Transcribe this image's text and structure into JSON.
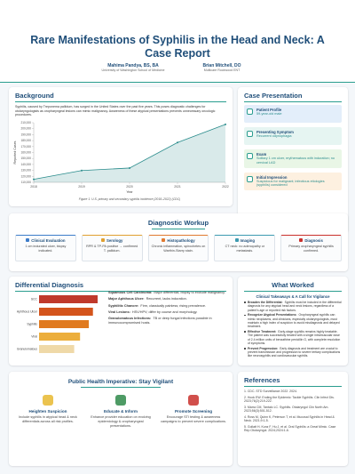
{
  "header": {
    "title": "Rare Manifestations of Syphilis in the Head and Neck: A Case Report",
    "authors": [
      {
        "name": "Mahima Pandya, BS, BA",
        "affiliation": "University of Washington School of Medicine"
      },
      {
        "name": "Brian Mitchell, DO",
        "affiliation": "Multicare Rockwood ENT"
      }
    ]
  },
  "background": {
    "title": "Background",
    "text": "Syphilis, caused by Treponema pallidum, has surged in the United States over the past five years. This poses diagnostic challenges for otolaryngologists as oropharyngeal lesions can mimic malignancy. Awareness of these atypical presentations prevents unnecessary oncologic procedures.",
    "chart": {
      "type": "line",
      "x_label": "Year",
      "y_label": "Reported Cases",
      "caption": "Figure 1. U.S. primary and secondary syphilis incidence (2018–2022) (CDC)",
      "x": [
        2018,
        2019,
        2020,
        2021,
        2022
      ],
      "series": [
        {
          "color": "#2a8c8c",
          "values": [
            115045,
            129813,
            133945,
            176713,
            207255
          ]
        }
      ],
      "xlim": [
        2018,
        2022
      ],
      "xticks": [
        2018,
        2019,
        2020,
        2021,
        2022
      ],
      "ylim": [
        110000,
        210000
      ],
      "yticks": [
        {
          "value": 110000,
          "label": "110,000"
        },
        {
          "value": 120000,
          "label": "120,000"
        },
        {
          "value": 130000,
          "label": "130,000"
        },
        {
          "value": 140000,
          "label": "140,000"
        },
        {
          "value": 150000,
          "label": "150,000"
        },
        {
          "value": 160000,
          "label": "160,000"
        },
        {
          "value": 170000,
          "label": "170,000"
        },
        {
          "value": 180000,
          "label": "180,000"
        },
        {
          "value": 190000,
          "label": "190,000"
        },
        {
          "value": 200000,
          "label": "200,000"
        },
        {
          "value": 210000,
          "label": "210,000"
        }
      ],
      "grid": false
    }
  },
  "case": {
    "title": "Case Presentation",
    "items": [
      {
        "label": "Patient Profile",
        "text": "59-year-old male",
        "color": "#e3eefa"
      },
      {
        "label": "Presenting Symptom",
        "text": "Recurrent odynophagia",
        "color": "#e6f5f2"
      },
      {
        "label": "Exam",
        "text": "Solitary 1 cm ulcer, erythematous with induration; no cervical LAD",
        "color": "#e9f6e6"
      },
      {
        "label": "Initial Impression",
        "text": "Suspicious for malignant; infectious etiologies (syphilis) considered",
        "color": "#fdf0e0"
      }
    ]
  },
  "workup": {
    "title": "Diagnostic Workup",
    "cards": [
      {
        "label": "Clinical Evaluation",
        "text": "1 cm indurated ulcer, biopsy indicated.",
        "color": "#3d7cc9"
      },
      {
        "label": "Serology",
        "text": "RPR & TP-PA positive → confirmed T. pallidum.",
        "color": "#e0a030"
      },
      {
        "label": "Histopathology",
        "text": "Chronic inflammation, spirochetes on Warthin-Starry stain.",
        "color": "#e07a30"
      },
      {
        "label": "Imaging",
        "text": "CT neck: no adenopathy or metastasis.",
        "color": "#3d9ab0"
      },
      {
        "label": "Diagnosis",
        "text": "Primary oropharyngeal syphilis confirmed.",
        "color": "#c9302c"
      }
    ]
  },
  "differential": {
    "title": "Differential Diagnosis",
    "chart": {
      "type": "bar",
      "orientation": "horizontal",
      "categories": [
        "SCC",
        "Aphthous Ulcer",
        "Syphilis",
        "Viral",
        "Granulomatous"
      ],
      "values": [
        100,
        92,
        85,
        70,
        60
      ],
      "colors": [
        "#c0392b",
        "#d4541c",
        "#e07a1f",
        "#ecae3c",
        "#efd9a8"
      ],
      "xlim": [
        0,
        100
      ]
    },
    "items": [
      {
        "term": "Squamous Cell Carcinoma:",
        "text": "Major differential; biopsy to exclude malignancy."
      },
      {
        "term": "Major Aphthous Ulcer:",
        "text": "Recurrent, lacks induration."
      },
      {
        "term": "Syphilitic Chancre:",
        "text": "Firm, classically painless; rising prevalence."
      },
      {
        "term": "Viral Lesions:",
        "text": "HSV/HPV; differ by course and morphology."
      },
      {
        "term": "Granulomatous Infections:",
        "text": "TB or deep fungal infections possible in immunocompromised hosts."
      }
    ]
  },
  "worked": {
    "title": "What Worked",
    "subtitle": "Clinical Takeaways & A Call for Vigilance",
    "items": [
      {
        "term": "Broaden the Differential:",
        "text": "Syphilis must be included in the differential diagnosis for any atypical head and neck lesions, regardless of a patient's age or reported risk factors."
      },
      {
        "term": "Recognize Atypical Presentations:",
        "text": "Oropharyngeal syphilis can mimic neoplasms, and clinicians, especially otolaryngologists, must maintain a high index of suspicion to avoid misdiagnosis and delayed treatment."
      },
      {
        "term": "Effective Treatment:",
        "text": "Early-stage syphilis remains highly treatable. The patient was successfully treated with a single intramuscular dose of 2.4 million units of benzathine penicillin G, with complete resolution of symptoms."
      },
      {
        "term": "Prevent Progression:",
        "text": "Early diagnosis and treatment are crucial to prevent transmission and progression to severe tertiary complications like neurosyphilis and cardiovascular syphilis."
      }
    ]
  },
  "public": {
    "title": "Public Health Imperative: Stay Vigilant",
    "items": [
      {
        "label": "Heighten Suspicion",
        "text": "Include syphilis in atypical head & neck differentials across all risk profiles.",
        "color": "#e8b830"
      },
      {
        "label": "Educate & Inform",
        "text": "Enhance provider education on evolving epidemiology & oropharyngeal presentations.",
        "color": "#2f8a4a"
      },
      {
        "label": "Promote Screening",
        "text": "Encourage STI testing & awareness campaigns to prevent severe complications.",
        "color": "#c9302c"
      }
    ]
  },
  "references": {
    "title": "References",
    "items": [
      "1. CDC. STD Surveillance 2022. 2024.",
      "2. Hook EW. Ending the Epidemic: Tackle Syphilis. Clin Infect Dis. 2023;76(2):219-222.",
      "3. Marra CM, Tantalo LC. Syphilis. Otolaryngol Clin North Am. 2023;56(3):501-512.",
      "4. Ross M, Quinn K, Peterson T, et al. Mucosal Syphilis in Head & Neck. 2021;9:1-5.",
      "5. Gollatt H, Kunz F, Hu J, et al. Oral Syphilis: a Great Mimic. Case Rep Otolaryngol. 2024;2024:1-6."
    ]
  }
}
